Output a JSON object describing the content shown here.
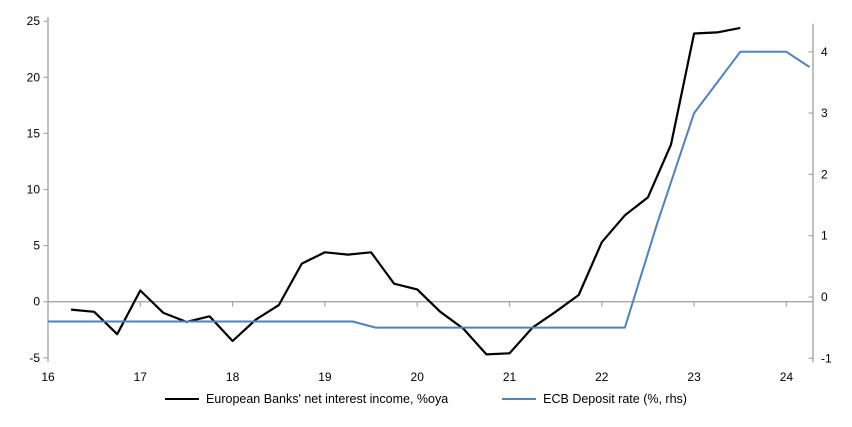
{
  "chart_data": {
    "type": "line",
    "title": "",
    "xlabel": "",
    "ylabel_left": "",
    "ylabel_right": "",
    "grid": "zero-line-only",
    "legend_position": "bottom-center",
    "axis_color": "#a6a6a6",
    "zero_line_color": "#a6a6a6",
    "x_axis": {
      "ticks": [
        16,
        17,
        18,
        19,
        20,
        21,
        22,
        23,
        24
      ],
      "range": [
        16,
        24.3
      ]
    },
    "left_axis": {
      "ticks": [
        25,
        20,
        15,
        10,
        5,
        0,
        -5
      ],
      "range": [
        -5,
        25
      ]
    },
    "right_axis": {
      "ticks": [
        4,
        3,
        2,
        1,
        0,
        -1
      ],
      "range": [
        -1,
        4.46
      ]
    },
    "series": [
      {
        "name": "European Banks' net interest income, %oya",
        "axis": "left",
        "color": "#000000",
        "width": 2.2,
        "points": [
          [
            16.25,
            -0.7
          ],
          [
            16.5,
            -0.9
          ],
          [
            16.75,
            -2.9
          ],
          [
            17.0,
            1.0
          ],
          [
            17.25,
            -1.0
          ],
          [
            17.5,
            -1.8
          ],
          [
            17.75,
            -1.3
          ],
          [
            18.0,
            -3.5
          ],
          [
            18.25,
            -1.6
          ],
          [
            18.5,
            -0.3
          ],
          [
            18.75,
            3.4
          ],
          [
            19.0,
            4.4
          ],
          [
            19.25,
            4.2
          ],
          [
            19.5,
            4.4
          ],
          [
            19.75,
            1.6
          ],
          [
            20.0,
            1.1
          ],
          [
            20.25,
            -0.9
          ],
          [
            20.5,
            -2.4
          ],
          [
            20.75,
            -4.7
          ],
          [
            21.0,
            -4.6
          ],
          [
            21.25,
            -2.3
          ],
          [
            21.5,
            -0.9
          ],
          [
            21.75,
            0.6
          ],
          [
            22.0,
            5.3
          ],
          [
            22.25,
            7.7
          ],
          [
            22.5,
            9.3
          ],
          [
            22.75,
            14.0
          ],
          [
            23.0,
            23.9
          ],
          [
            23.25,
            24.0
          ],
          [
            23.5,
            24.4
          ]
        ]
      },
      {
        "name": "ECB Deposit rate (%, rhs)",
        "axis": "right",
        "color": "#4f81bd",
        "width": 2,
        "points": [
          [
            16.0,
            -0.4
          ],
          [
            19.3,
            -0.4
          ],
          [
            19.55,
            -0.5
          ],
          [
            22.25,
            -0.5
          ],
          [
            22.6,
            1.2
          ],
          [
            23.0,
            3.0
          ],
          [
            23.5,
            4.0
          ],
          [
            24.0,
            4.0
          ],
          [
            24.25,
            3.75
          ]
        ]
      }
    ],
    "legend": [
      {
        "label": "European Banks' net interest income, %oya",
        "color": "#000000"
      },
      {
        "label": "ECB Deposit rate (%, rhs)",
        "color": "#4f81bd"
      }
    ]
  }
}
